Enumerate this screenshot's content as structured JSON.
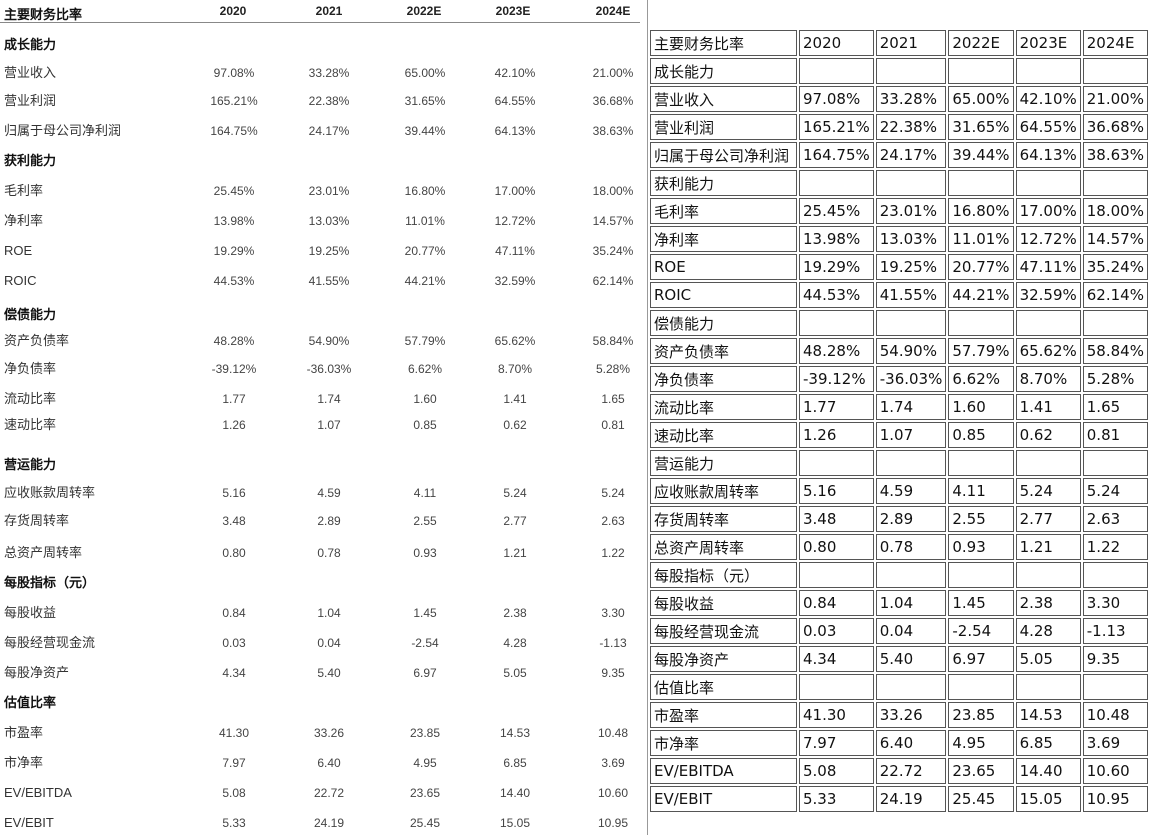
{
  "title": "主要财务比率",
  "years": [
    "2020",
    "2021",
    "2022E",
    "2023E",
    "2024E"
  ],
  "rows": [
    {
      "label": "成长能力",
      "section": true,
      "values": [
        "",
        "",
        "",
        "",
        ""
      ]
    },
    {
      "label": "营业收入",
      "section": false,
      "values": [
        "97.08%",
        "33.28%",
        "65.00%",
        "42.10%",
        "21.00%"
      ]
    },
    {
      "label": "营业利润",
      "section": false,
      "values": [
        "165.21%",
        "22.38%",
        "31.65%",
        "64.55%",
        "36.68%"
      ]
    },
    {
      "label": "归属于母公司净利润",
      "section": false,
      "values": [
        "164.75%",
        "24.17%",
        "39.44%",
        "64.13%",
        "38.63%"
      ]
    },
    {
      "label": "获利能力",
      "section": true,
      "values": [
        "",
        "",
        "",
        "",
        ""
      ]
    },
    {
      "label": "毛利率",
      "section": false,
      "values": [
        "25.45%",
        "23.01%",
        "16.80%",
        "17.00%",
        "18.00%"
      ]
    },
    {
      "label": "净利率",
      "section": false,
      "values": [
        "13.98%",
        "13.03%",
        "11.01%",
        "12.72%",
        "14.57%"
      ]
    },
    {
      "label": "ROE",
      "section": false,
      "values": [
        "19.29%",
        "19.25%",
        "20.77%",
        "47.11%",
        "35.24%"
      ]
    },
    {
      "label": "ROIC",
      "section": false,
      "values": [
        "44.53%",
        "41.55%",
        "44.21%",
        "32.59%",
        "62.14%"
      ]
    },
    {
      "label": "偿债能力",
      "section": true,
      "values": [
        "",
        "",
        "",
        "",
        ""
      ]
    },
    {
      "label": "资产负债率",
      "section": false,
      "values": [
        "48.28%",
        "54.90%",
        "57.79%",
        "65.62%",
        "58.84%"
      ]
    },
    {
      "label": "净负债率",
      "section": false,
      "values": [
        "-39.12%",
        "-36.03%",
        "6.62%",
        "8.70%",
        "5.28%"
      ]
    },
    {
      "label": "流动比率",
      "section": false,
      "values": [
        "1.77",
        "1.74",
        "1.60",
        "1.41",
        "1.65"
      ]
    },
    {
      "label": "速动比率",
      "section": false,
      "values": [
        "1.26",
        "1.07",
        "0.85",
        "0.62",
        "0.81"
      ]
    },
    {
      "label": "营运能力",
      "section": true,
      "values": [
        "",
        "",
        "",
        "",
        ""
      ]
    },
    {
      "label": "应收账款周转率",
      "section": false,
      "values": [
        "5.16",
        "4.59",
        "4.11",
        "5.24",
        "5.24"
      ]
    },
    {
      "label": "存货周转率",
      "section": false,
      "values": [
        "3.48",
        "2.89",
        "2.55",
        "2.77",
        "2.63"
      ]
    },
    {
      "label": "总资产周转率",
      "section": false,
      "values": [
        "0.80",
        "0.78",
        "0.93",
        "1.21",
        "1.22"
      ]
    },
    {
      "label": "每股指标（元）",
      "section": true,
      "values": [
        "",
        "",
        "",
        "",
        ""
      ]
    },
    {
      "label": "每股收益",
      "section": false,
      "values": [
        "0.84",
        "1.04",
        "1.45",
        "2.38",
        "3.30"
      ]
    },
    {
      "label": "每股经营现金流",
      "section": false,
      "values": [
        "0.03",
        "0.04",
        "-2.54",
        "4.28",
        "-1.13"
      ]
    },
    {
      "label": "每股净资产",
      "section": false,
      "values": [
        "4.34",
        "5.40",
        "6.97",
        "5.05",
        "9.35"
      ]
    },
    {
      "label": "估值比率",
      "section": true,
      "values": [
        "",
        "",
        "",
        "",
        ""
      ]
    },
    {
      "label": "市盈率",
      "section": false,
      "values": [
        "41.30",
        "33.26",
        "23.85",
        "14.53",
        "10.48"
      ]
    },
    {
      "label": "市净率",
      "section": false,
      "values": [
        "7.97",
        "6.40",
        "4.95",
        "6.85",
        "3.69"
      ]
    },
    {
      "label": "EV/EBITDA",
      "section": false,
      "values": [
        "5.08",
        "22.72",
        "23.65",
        "14.40",
        "10.60"
      ]
    },
    {
      "label": "EV/EBIT",
      "section": false,
      "values": [
        "5.33",
        "24.19",
        "25.45",
        "15.05",
        "10.95"
      ]
    }
  ]
}
